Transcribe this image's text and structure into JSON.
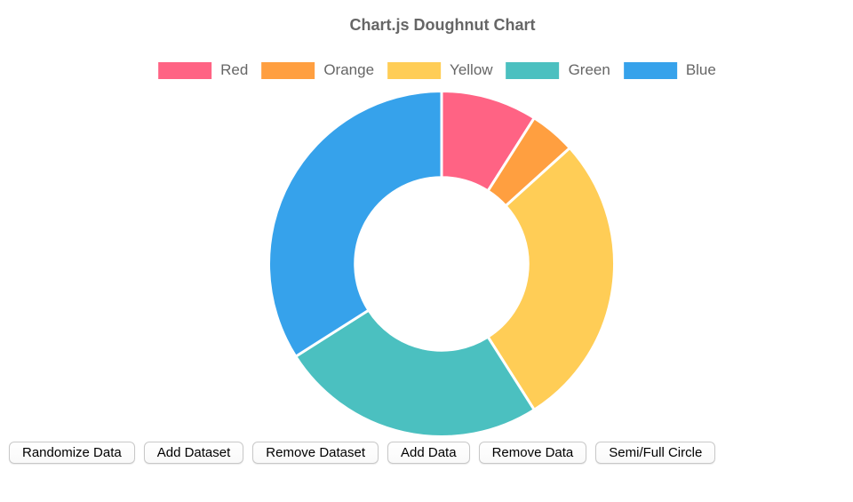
{
  "window": {
    "background": "#ffffff"
  },
  "header": {
    "title": "Chart.js Doughnut Chart",
    "title_color": "#666666"
  },
  "chart_data": {
    "type": "pie",
    "variant": "doughnut",
    "title": "Chart.js Doughnut Chart",
    "categories": [
      "Red",
      "Orange",
      "Yellow",
      "Green",
      "Blue"
    ],
    "values_percent": [
      9,
      4.3,
      27.7,
      25,
      34
    ],
    "segment_angles_deg": [
      32.4,
      15.5,
      99.7,
      90,
      122.4
    ],
    "colors": [
      "#FF6384",
      "#FF9F40",
      "#FFCD56",
      "#4BC0C0",
      "#36A2EB"
    ],
    "start": "top (12 o'clock)",
    "direction": "clockwise",
    "cutout_percent": 50,
    "border_color": "#ffffff",
    "border_width": 3,
    "legend_position": "top",
    "legend_text_color": "#666666"
  },
  "toolbar": {
    "buttons": [
      "Randomize Data",
      "Add Dataset",
      "Remove Dataset",
      "Add Data",
      "Remove Data",
      "Semi/Full Circle"
    ]
  }
}
